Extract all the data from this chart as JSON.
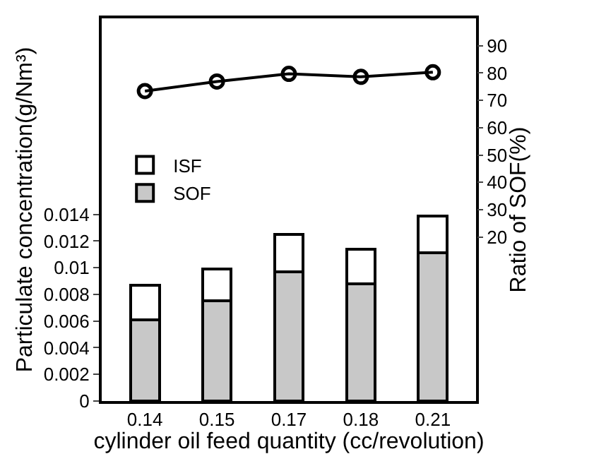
{
  "chart_data": {
    "type": "bar",
    "stacked": true,
    "categories": [
      "0.14",
      "0.15",
      "0.17",
      "0.18",
      "0.21"
    ],
    "xlabel": "cylinder oil feed quantity (cc/revolution)",
    "ylabel": "Particulate concentration(g/Nm³)",
    "y2label": "Ratio of SOF(%)",
    "series": [
      {
        "name": "SOF",
        "color": "#c8c8c8",
        "values": [
          0.0061,
          0.0075,
          0.0097,
          0.0088,
          0.0111
        ]
      },
      {
        "name": "ISF",
        "color": "#ffffff",
        "values": [
          0.0026,
          0.0024,
          0.0028,
          0.0026,
          0.0028
        ]
      },
      {
        "type": "line",
        "axis": "y2",
        "color": "#000000",
        "marker": "circle",
        "values": [
          73.4,
          76.9,
          79.7,
          78.6,
          80.3
        ]
      }
    ],
    "ylim": [
      0,
      0.0287
    ],
    "yticks": [
      0,
      0.002,
      0.004,
      0.006,
      0.008,
      0.01,
      0.012,
      0.014
    ],
    "y2lim": [
      -40,
      100
    ],
    "y2ticks": [
      20,
      30,
      40,
      50,
      60,
      70,
      80,
      90
    ],
    "legend": "left"
  }
}
